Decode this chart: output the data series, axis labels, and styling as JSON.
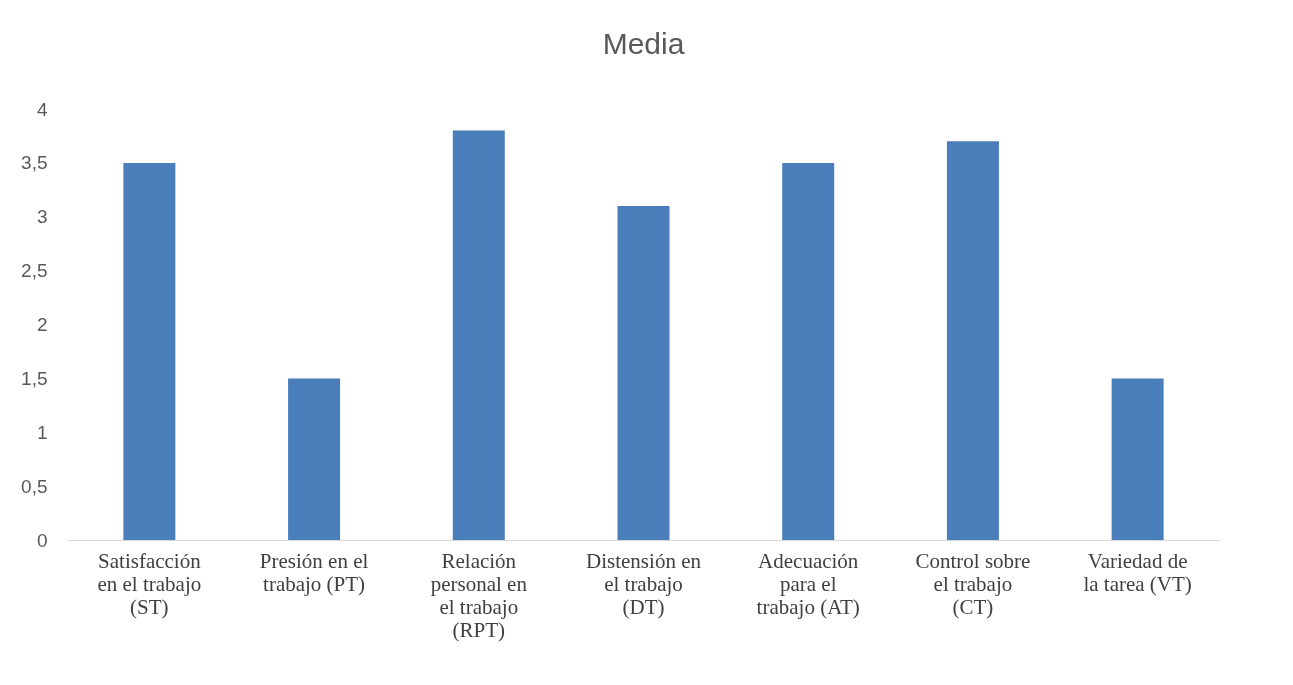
{
  "chart_data": {
    "type": "bar",
    "title": "Media",
    "categories": [
      "Satisfacción en el trabajo (ST)",
      "Presión en el trabajo (PT)",
      "Relación personal en el trabajo (RPT)",
      "Distensión en el trabajo (DT)",
      "Adecuación para el trabajo (AT)",
      "Control sobre el trabajo (CT)",
      "Variedad de la tarea (VT)"
    ],
    "values": [
      3.5,
      1.5,
      3.8,
      3.1,
      3.5,
      3.7,
      1.5
    ],
    "color": "#4a7ebb",
    "ylim": [
      0,
      4
    ],
    "yticks": [
      0,
      {
        "value": 0.5,
        "label": "0,5"
      },
      1,
      {
        "value": 1.5,
        "label": "1,5"
      },
      2,
      {
        "value": 2.5,
        "label": "2,5"
      },
      3,
      {
        "value": 3.5,
        "label": "3,5"
      },
      4
    ],
    "grid": false
  }
}
